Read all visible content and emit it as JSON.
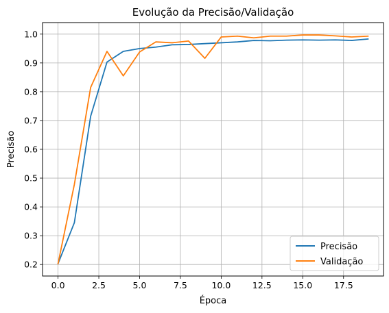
{
  "chart_data": {
    "type": "line",
    "title": "Evolução da Precisão/Validação",
    "xlabel": "Época",
    "ylabel": "Precisão",
    "xlim": [
      -0.95,
      19.95
    ],
    "ylim": [
      0.16,
      1.04
    ],
    "x_ticks": [
      0.0,
      2.5,
      5.0,
      7.5,
      10.0,
      12.5,
      15.0,
      17.5
    ],
    "x_tick_labels": [
      "0.0",
      "2.5",
      "5.0",
      "7.5",
      "10.0",
      "12.5",
      "15.0",
      "17.5"
    ],
    "y_ticks": [
      0.2,
      0.3,
      0.4,
      0.5,
      0.6,
      0.7,
      0.8,
      0.9,
      1.0
    ],
    "y_tick_labels": [
      "0.2",
      "0.3",
      "0.4",
      "0.5",
      "0.6",
      "0.7",
      "0.8",
      "0.9",
      "1.0"
    ],
    "grid": true,
    "legend_position": "lower-right",
    "x": [
      0,
      1,
      2,
      3,
      4,
      5,
      6,
      7,
      8,
      9,
      10,
      11,
      12,
      13,
      14,
      15,
      16,
      17,
      18,
      19
    ],
    "series": [
      {
        "name": "Precisão",
        "color": "#1f77b4",
        "values": [
          0.203,
          0.345,
          0.715,
          0.903,
          0.94,
          0.95,
          0.955,
          0.963,
          0.964,
          0.967,
          0.97,
          0.973,
          0.978,
          0.977,
          0.979,
          0.98,
          0.979,
          0.98,
          0.978,
          0.983
        ]
      },
      {
        "name": "Validação",
        "color": "#ff7f0e",
        "values": [
          0.203,
          0.478,
          0.815,
          0.94,
          0.855,
          0.938,
          0.973,
          0.97,
          0.976,
          0.916,
          0.99,
          0.993,
          0.987,
          0.993,
          0.993,
          0.997,
          0.997,
          0.994,
          0.99,
          0.993
        ]
      }
    ]
  }
}
